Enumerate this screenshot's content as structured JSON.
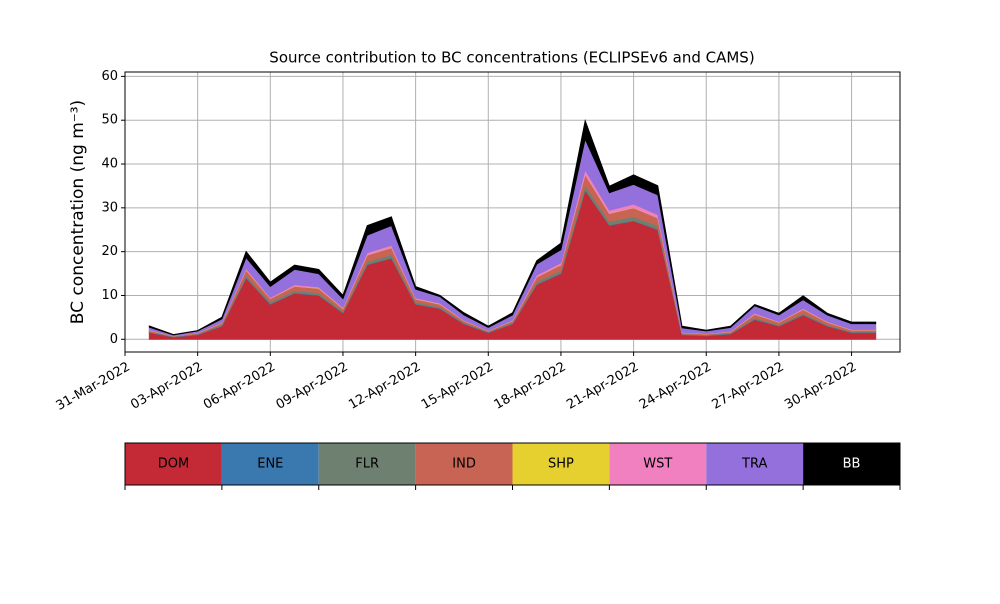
{
  "chart_data": {
    "type": "stackedarea",
    "title": "Source contribution to BC concentrations (ECLIPSEv6 and CAMS)",
    "y_label": "BC concentration (ng m⁻³)",
    "x": [
      "2022-04-01",
      "2022-04-02",
      "2022-04-03",
      "2022-04-04",
      "2022-04-05",
      "2022-04-06",
      "2022-04-07",
      "2022-04-08",
      "2022-04-09",
      "2022-04-10",
      "2022-04-11",
      "2022-04-12",
      "2022-04-13",
      "2022-04-14",
      "2022-04-15",
      "2022-04-16",
      "2022-04-17",
      "2022-04-18",
      "2022-04-19",
      "2022-04-20",
      "2022-04-21",
      "2022-04-22",
      "2022-04-23",
      "2022-04-24",
      "2022-04-25",
      "2022-04-26",
      "2022-04-27",
      "2022-04-28",
      "2022-04-29",
      "2022-04-30",
      "2022-05-01"
    ],
    "series": [
      {
        "name": "DOM",
        "color": "#c42a35",
        "values": [
          1.5,
          0.5,
          1,
          3,
          14,
          8,
          10.5,
          10,
          6,
          17,
          18.5,
          8,
          7,
          3.5,
          1.5,
          3.5,
          12.5,
          15,
          34,
          26,
          27,
          25,
          1,
          0.8,
          1.2,
          4.5,
          3,
          5.5,
          3,
          1.5,
          1.5
        ]
      },
      {
        "name": "ENE",
        "color": "#3a78b0",
        "values": [
          0.1,
          0.1,
          0.1,
          0.1,
          0.1,
          0.1,
          0.1,
          0.1,
          0.1,
          0.1,
          0.1,
          0.1,
          0.1,
          0.1,
          0.1,
          0.1,
          0.1,
          0.1,
          0.1,
          0.1,
          0.1,
          0.1,
          0.1,
          0.1,
          0.1,
          0.1,
          0.1,
          0.1,
          0.1,
          0.1,
          0.1
        ]
      },
      {
        "name": "FLR",
        "color": "#6e8070",
        "values": [
          0.1,
          0.05,
          0.1,
          0.2,
          0.5,
          0.4,
          0.5,
          0.5,
          0.3,
          0.6,
          0.7,
          0.4,
          0.3,
          0.2,
          0.1,
          0.2,
          0.5,
          0.6,
          1.0,
          0.8,
          0.9,
          0.8,
          0.1,
          0.1,
          0.1,
          0.3,
          0.2,
          0.3,
          0.2,
          0.1,
          0.1
        ]
      },
      {
        "name": "IND",
        "color": "#c86454",
        "values": [
          0.3,
          0.1,
          0.2,
          0.4,
          1.2,
          0.8,
          1.0,
          1.0,
          0.6,
          1.5,
          1.6,
          0.7,
          0.6,
          0.4,
          0.2,
          0.4,
          1.1,
          1.3,
          2.5,
          1.8,
          2.0,
          1.8,
          0.3,
          0.2,
          0.3,
          0.8,
          0.6,
          0.9,
          0.6,
          0.4,
          0.4
        ]
      },
      {
        "name": "SHP",
        "color": "#e6d030",
        "values": [
          0.05,
          0.05,
          0.05,
          0.05,
          0.05,
          0.05,
          0.05,
          0.05,
          0.05,
          0.05,
          0.05,
          0.05,
          0.05,
          0.05,
          0.05,
          0.05,
          0.05,
          0.05,
          0.05,
          0.05,
          0.05,
          0.05,
          0.05,
          0.05,
          0.05,
          0.05,
          0.05,
          0.05,
          0.05,
          0.05,
          0.05
        ]
      },
      {
        "name": "WST",
        "color": "#f080c0",
        "values": [
          0.1,
          0,
          0.05,
          0.1,
          0.3,
          0.2,
          0.3,
          0.3,
          0.2,
          0.5,
          0.5,
          0.2,
          0.2,
          0.1,
          0.05,
          0.1,
          0.4,
          0.4,
          1.0,
          0.7,
          0.8,
          0.7,
          0.05,
          0.05,
          0.05,
          0.2,
          0.1,
          0.2,
          0.1,
          0.1,
          0.1
        ]
      },
      {
        "name": "TRA",
        "color": "#9370db",
        "values": [
          0.6,
          0.2,
          0.4,
          0.8,
          2.5,
          2.5,
          3.5,
          3,
          2,
          4,
          4.5,
          2,
          1.5,
          1.2,
          0.7,
          1.2,
          2.5,
          3,
          7,
          4,
          4.5,
          4.5,
          1,
          0.6,
          0.9,
          1.7,
          1.5,
          2,
          1.5,
          1.3,
          1.3
        ]
      },
      {
        "name": "BB",
        "color": "#000000",
        "values": [
          0.3,
          0.1,
          0.1,
          0.4,
          1.4,
          1,
          1,
          1,
          0.8,
          2.2,
          2,
          0.6,
          0.3,
          0.5,
          0.3,
          0.5,
          0.8,
          1.5,
          4.3,
          1.5,
          2.2,
          2.1,
          0.4,
          0.2,
          0.3,
          0.3,
          0.4,
          0.9,
          0.4,
          0.4,
          0.4
        ]
      }
    ],
    "xlim": [
      "2022-03-31",
      "2022-05-02"
    ],
    "xticks": [
      {
        "value": "2022-03-31",
        "label": "31-Mar-2022"
      },
      {
        "value": "2022-04-03",
        "label": "03-Apr-2022"
      },
      {
        "value": "2022-04-06",
        "label": "06-Apr-2022"
      },
      {
        "value": "2022-04-09",
        "label": "09-Apr-2022"
      },
      {
        "value": "2022-04-12",
        "label": "12-Apr-2022"
      },
      {
        "value": "2022-04-15",
        "label": "15-Apr-2022"
      },
      {
        "value": "2022-04-18",
        "label": "18-Apr-2022"
      },
      {
        "value": "2022-04-21",
        "label": "21-Apr-2022"
      },
      {
        "value": "2022-04-24",
        "label": "24-Apr-2022"
      },
      {
        "value": "2022-04-27",
        "label": "27-Apr-2022"
      },
      {
        "value": "2022-04-30",
        "label": "30-Apr-2022"
      }
    ],
    "ylim": [
      -2.9,
      61
    ],
    "yticks": [
      0,
      10,
      20,
      30,
      40,
      50,
      60
    ],
    "grid": true
  }
}
